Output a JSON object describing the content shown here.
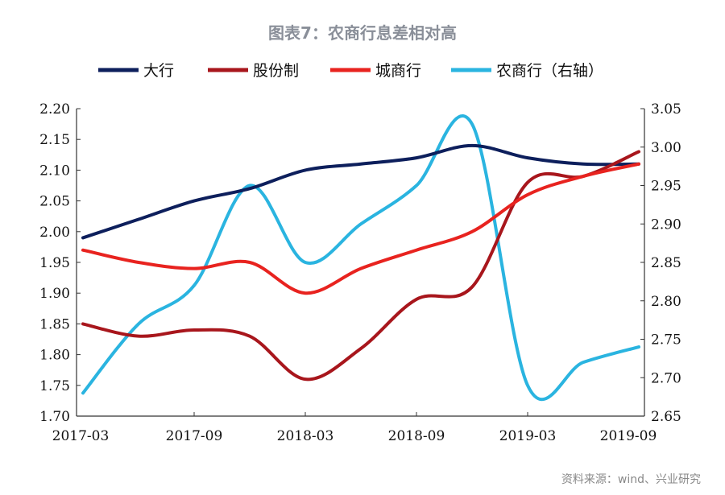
{
  "chart_data": {
    "type": "line",
    "title": "图表7：农商行息差相对高",
    "source": "资料来源：wind、兴业研究",
    "x": [
      "2017-03",
      "2017-06",
      "2017-09",
      "2017-12",
      "2018-03",
      "2018-06",
      "2018-09",
      "2018-12",
      "2019-03",
      "2019-06",
      "2019-09"
    ],
    "x_tick_labels": [
      "2017-03",
      "2017-09",
      "2018-03",
      "2018-09",
      "2019-03",
      "2019-09"
    ],
    "ylim_left": [
      1.7,
      2.2
    ],
    "yticks_left": [
      "1.70",
      "1.75",
      "1.80",
      "1.85",
      "1.90",
      "1.95",
      "2.00",
      "2.05",
      "2.10",
      "2.15",
      "2.20"
    ],
    "ylim_right": [
      2.65,
      3.05
    ],
    "yticks_right": [
      "2.65",
      "2.70",
      "2.75",
      "2.80",
      "2.85",
      "2.90",
      "2.95",
      "3.00",
      "3.05"
    ],
    "grid": false,
    "legend_position": "top",
    "series": [
      {
        "name": "大行",
        "axis": "left",
        "color": "#0d1f5c",
        "values": [
          1.99,
          2.02,
          2.05,
          2.07,
          2.1,
          2.11,
          2.12,
          2.14,
          2.12,
          2.11,
          2.11
        ]
      },
      {
        "name": "股份制",
        "axis": "left",
        "color": "#a8161c",
        "values": [
          1.85,
          1.83,
          1.84,
          1.83,
          1.76,
          1.81,
          1.89,
          1.91,
          2.08,
          2.09,
          2.13
        ]
      },
      {
        "name": "城商行",
        "axis": "left",
        "color": "#e8231f",
        "values": [
          1.97,
          1.95,
          1.94,
          1.95,
          1.9,
          1.94,
          1.97,
          2.0,
          2.06,
          2.09,
          2.11
        ]
      },
      {
        "name": "农商行（右轴）",
        "axis": "right",
        "color": "#2ab4e0",
        "values": [
          2.68,
          2.77,
          2.82,
          2.95,
          2.85,
          2.9,
          2.95,
          3.03,
          2.69,
          2.72,
          2.74
        ]
      }
    ]
  }
}
